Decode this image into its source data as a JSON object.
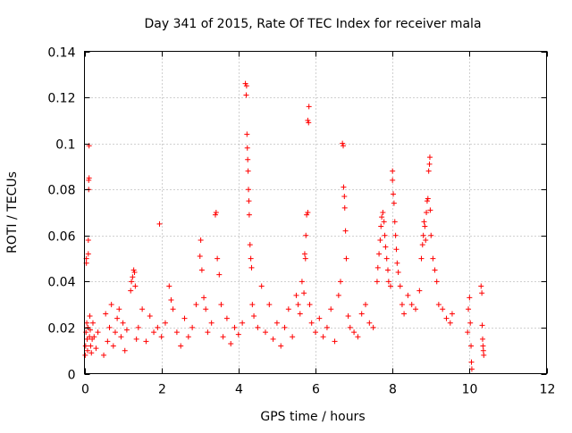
{
  "chart_data": {
    "type": "scatter",
    "title": "Day 341 of 2015, Rate Of TEC Index for receiver mala",
    "xlabel": "GPS time / hours",
    "ylabel": "ROTI / TECUs",
    "xlim": [
      0,
      12
    ],
    "ylim": [
      0,
      0.14
    ],
    "grid": true,
    "x_ticks": [
      0,
      2,
      4,
      6,
      8,
      10,
      12
    ],
    "x_tick_labels": [
      "0",
      "2",
      "4",
      "6",
      "8",
      "10",
      "12"
    ],
    "y_ticks": [
      0,
      0.02,
      0.04,
      0.06,
      0.08,
      0.1,
      0.12,
      0.14
    ],
    "y_tick_labels": [
      "0",
      "0.02",
      "0.04",
      "0.06",
      "0.08",
      "0.1",
      "0.12",
      "0.14"
    ],
    "marker": "+",
    "series": [
      {
        "name": "ROTI",
        "color": "#ff0000",
        "points": [
          [
            0.02,
            0.008
          ],
          [
            0.03,
            0.012
          ],
          [
            0.04,
            0.018
          ],
          [
            0.05,
            0.048
          ],
          [
            0.05,
            0.05
          ],
          [
            0.06,
            0.022
          ],
          [
            0.07,
            0.015
          ],
          [
            0.08,
            0.01
          ],
          [
            0.09,
            0.02
          ],
          [
            0.1,
            0.052
          ],
          [
            0.1,
            0.058
          ],
          [
            0.11,
            0.08
          ],
          [
            0.11,
            0.084
          ],
          [
            0.12,
            0.085
          ],
          [
            0.12,
            0.099
          ],
          [
            0.13,
            0.016
          ],
          [
            0.14,
            0.025
          ],
          [
            0.15,
            0.019
          ],
          [
            0.16,
            0.012
          ],
          [
            0.18,
            0.009
          ],
          [
            0.2,
            0.015
          ],
          [
            0.22,
            0.022
          ],
          [
            0.25,
            0.016
          ],
          [
            0.3,
            0.011
          ],
          [
            0.35,
            0.018
          ],
          [
            0.5,
            0.008
          ],
          [
            0.55,
            0.026
          ],
          [
            0.6,
            0.014
          ],
          [
            0.65,
            0.02
          ],
          [
            0.7,
            0.03
          ],
          [
            0.75,
            0.012
          ],
          [
            0.8,
            0.018
          ],
          [
            0.85,
            0.024
          ],
          [
            0.9,
            0.028
          ],
          [
            0.95,
            0.016
          ],
          [
            1.0,
            0.022
          ],
          [
            1.05,
            0.01
          ],
          [
            1.1,
            0.019
          ],
          [
            1.2,
            0.036
          ],
          [
            1.22,
            0.04
          ],
          [
            1.25,
            0.042
          ],
          [
            1.28,
            0.045
          ],
          [
            1.3,
            0.044
          ],
          [
            1.32,
            0.038
          ],
          [
            1.35,
            0.015
          ],
          [
            1.4,
            0.02
          ],
          [
            1.5,
            0.028
          ],
          [
            1.6,
            0.014
          ],
          [
            1.7,
            0.025
          ],
          [
            1.8,
            0.018
          ],
          [
            1.9,
            0.02
          ],
          [
            1.95,
            0.065
          ],
          [
            2.0,
            0.016
          ],
          [
            2.1,
            0.022
          ],
          [
            2.2,
            0.038
          ],
          [
            2.25,
            0.032
          ],
          [
            2.3,
            0.028
          ],
          [
            2.4,
            0.018
          ],
          [
            2.5,
            0.012
          ],
          [
            2.6,
            0.024
          ],
          [
            2.7,
            0.016
          ],
          [
            2.8,
            0.02
          ],
          [
            2.9,
            0.03
          ],
          [
            3.0,
            0.051
          ],
          [
            3.02,
            0.058
          ],
          [
            3.05,
            0.045
          ],
          [
            3.1,
            0.033
          ],
          [
            3.15,
            0.028
          ],
          [
            3.2,
            0.018
          ],
          [
            3.3,
            0.022
          ],
          [
            3.4,
            0.069
          ],
          [
            3.42,
            0.07
          ],
          [
            3.45,
            0.05
          ],
          [
            3.5,
            0.043
          ],
          [
            3.55,
            0.03
          ],
          [
            3.6,
            0.016
          ],
          [
            3.7,
            0.024
          ],
          [
            3.8,
            0.013
          ],
          [
            3.9,
            0.02
          ],
          [
            4.0,
            0.017
          ],
          [
            4.1,
            0.022
          ],
          [
            4.18,
            0.126
          ],
          [
            4.2,
            0.121
          ],
          [
            4.21,
            0.125
          ],
          [
            4.22,
            0.104
          ],
          [
            4.23,
            0.098
          ],
          [
            4.24,
            0.093
          ],
          [
            4.25,
            0.088
          ],
          [
            4.26,
            0.08
          ],
          [
            4.27,
            0.075
          ],
          [
            4.28,
            0.069
          ],
          [
            4.3,
            0.056
          ],
          [
            4.32,
            0.05
          ],
          [
            4.34,
            0.046
          ],
          [
            4.36,
            0.03
          ],
          [
            4.4,
            0.025
          ],
          [
            4.5,
            0.02
          ],
          [
            4.6,
            0.038
          ],
          [
            4.7,
            0.018
          ],
          [
            4.8,
            0.03
          ],
          [
            4.9,
            0.015
          ],
          [
            5.0,
            0.022
          ],
          [
            5.1,
            0.012
          ],
          [
            5.2,
            0.02
          ],
          [
            5.3,
            0.028
          ],
          [
            5.4,
            0.016
          ],
          [
            5.5,
            0.034
          ],
          [
            5.55,
            0.03
          ],
          [
            5.6,
            0.026
          ],
          [
            5.65,
            0.04
          ],
          [
            5.7,
            0.035
          ],
          [
            5.72,
            0.052
          ],
          [
            5.74,
            0.05
          ],
          [
            5.75,
            0.06
          ],
          [
            5.77,
            0.069
          ],
          [
            5.8,
            0.07
          ],
          [
            5.8,
            0.11
          ],
          [
            5.82,
            0.109
          ],
          [
            5.83,
            0.116
          ],
          [
            5.85,
            0.03
          ],
          [
            5.9,
            0.022
          ],
          [
            6.0,
            0.018
          ],
          [
            6.1,
            0.024
          ],
          [
            6.2,
            0.016
          ],
          [
            6.3,
            0.02
          ],
          [
            6.4,
            0.028
          ],
          [
            6.5,
            0.014
          ],
          [
            6.6,
            0.034
          ],
          [
            6.65,
            0.04
          ],
          [
            6.7,
            0.1
          ],
          [
            6.72,
            0.099
          ],
          [
            6.73,
            0.081
          ],
          [
            6.75,
            0.077
          ],
          [
            6.76,
            0.072
          ],
          [
            6.78,
            0.062
          ],
          [
            6.8,
            0.05
          ],
          [
            6.85,
            0.025
          ],
          [
            6.9,
            0.02
          ],
          [
            7.0,
            0.018
          ],
          [
            7.1,
            0.016
          ],
          [
            7.2,
            0.026
          ],
          [
            7.3,
            0.03
          ],
          [
            7.4,
            0.022
          ],
          [
            7.5,
            0.02
          ],
          [
            7.6,
            0.04
          ],
          [
            7.62,
            0.046
          ],
          [
            7.65,
            0.052
          ],
          [
            7.68,
            0.058
          ],
          [
            7.7,
            0.064
          ],
          [
            7.72,
            0.068
          ],
          [
            7.75,
            0.07
          ],
          [
            7.78,
            0.066
          ],
          [
            7.8,
            0.06
          ],
          [
            7.82,
            0.055
          ],
          [
            7.85,
            0.05
          ],
          [
            7.88,
            0.045
          ],
          [
            7.9,
            0.04
          ],
          [
            7.95,
            0.038
          ],
          [
            8.0,
            0.088
          ],
          [
            8.0,
            0.084
          ],
          [
            8.02,
            0.078
          ],
          [
            8.04,
            0.074
          ],
          [
            8.06,
            0.066
          ],
          [
            8.08,
            0.06
          ],
          [
            8.1,
            0.054
          ],
          [
            8.12,
            0.048
          ],
          [
            8.15,
            0.044
          ],
          [
            8.2,
            0.038
          ],
          [
            8.25,
            0.03
          ],
          [
            8.3,
            0.026
          ],
          [
            8.4,
            0.034
          ],
          [
            8.5,
            0.03
          ],
          [
            8.6,
            0.028
          ],
          [
            8.7,
            0.036
          ],
          [
            8.75,
            0.05
          ],
          [
            8.78,
            0.056
          ],
          [
            8.8,
            0.06
          ],
          [
            8.82,
            0.066
          ],
          [
            8.84,
            0.064
          ],
          [
            8.86,
            0.058
          ],
          [
            8.88,
            0.07
          ],
          [
            8.9,
            0.075
          ],
          [
            8.92,
            0.076
          ],
          [
            8.94,
            0.088
          ],
          [
            8.96,
            0.091
          ],
          [
            8.97,
            0.094
          ],
          [
            8.98,
            0.071
          ],
          [
            9.0,
            0.06
          ],
          [
            9.05,
            0.05
          ],
          [
            9.1,
            0.045
          ],
          [
            9.15,
            0.04
          ],
          [
            9.2,
            0.03
          ],
          [
            9.3,
            0.028
          ],
          [
            9.4,
            0.024
          ],
          [
            9.5,
            0.022
          ],
          [
            9.55,
            0.026
          ],
          [
            9.95,
            0.018
          ],
          [
            9.97,
            0.028
          ],
          [
            10.0,
            0.033
          ],
          [
            10.02,
            0.022
          ],
          [
            10.04,
            0.012
          ],
          [
            10.05,
            0.005
          ],
          [
            10.06,
            0.002
          ],
          [
            10.3,
            0.038
          ],
          [
            10.32,
            0.035
          ],
          [
            10.33,
            0.021
          ],
          [
            10.34,
            0.015
          ],
          [
            10.35,
            0.012
          ],
          [
            10.36,
            0.01
          ],
          [
            10.37,
            0.008
          ]
        ]
      }
    ]
  }
}
